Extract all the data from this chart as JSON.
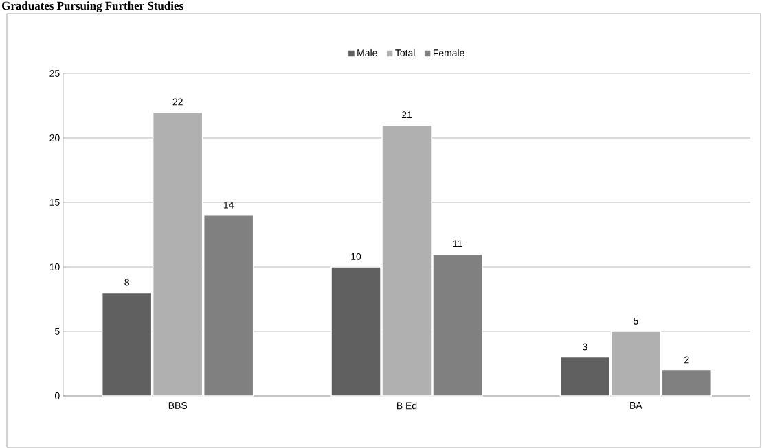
{
  "chart_data": {
    "type": "bar",
    "title": "Graduates Pursuing Further Studies",
    "categories": [
      "BBS",
      "B Ed",
      "BA"
    ],
    "series": [
      {
        "name": "Male",
        "color": "#606060",
        "values": [
          8,
          10,
          3
        ]
      },
      {
        "name": "Total",
        "color": "#b0b0b0",
        "values": [
          22,
          21,
          5
        ]
      },
      {
        "name": "Female",
        "color": "#808080",
        "values": [
          14,
          11,
          2
        ]
      }
    ],
    "ylim": [
      0,
      25
    ],
    "yticks": [
      0,
      5,
      10,
      15,
      20,
      25
    ],
    "grid": "y",
    "legend": "top",
    "data_labels": true
  }
}
